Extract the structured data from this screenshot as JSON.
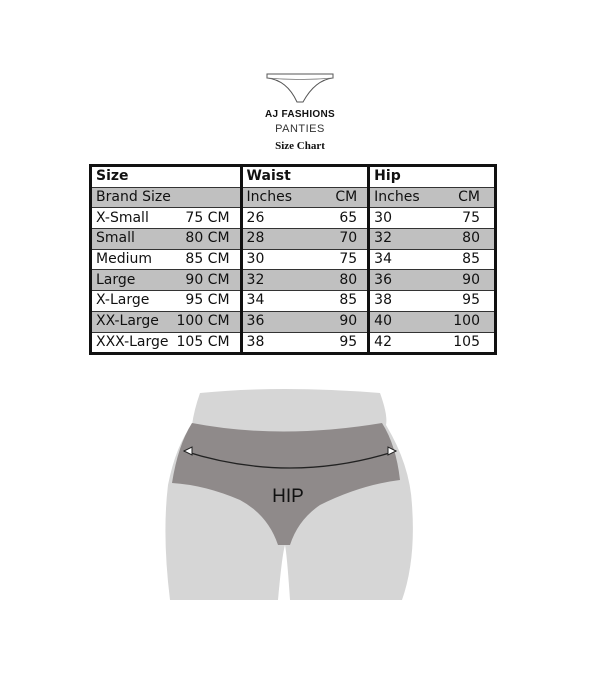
{
  "header": {
    "brand": "AJ FASHIONS",
    "product": "PANTIES",
    "title": "Size Chart"
  },
  "table": {
    "group_headers": [
      "Size",
      "Waist",
      "Hip"
    ],
    "sub_headers": [
      "Brand Size",
      "Inches",
      "CM",
      "Inches",
      "CM"
    ],
    "rows": [
      [
        "X-Small",
        "75 CM",
        "26",
        "65",
        "30",
        "75"
      ],
      [
        "Small",
        "80 CM",
        "28",
        "70",
        "32",
        "80"
      ],
      [
        "Medium",
        "85 CM",
        "30",
        "75",
        "34",
        "85"
      ],
      [
        "Large",
        "90 CM",
        "32",
        "80",
        "36",
        "90"
      ],
      [
        "X-Large",
        "95 CM",
        "34",
        "85",
        "38",
        "95"
      ],
      [
        "XX-Large",
        "100 CM",
        "36",
        "90",
        "40",
        "100"
      ],
      [
        "XXX-Large",
        "105 CM",
        "38",
        "95",
        "42",
        "105"
      ]
    ]
  },
  "illustration": {
    "label": "HIP",
    "icons": [
      "panties-outline-icon",
      "measure-arrow-icon"
    ],
    "colors": {
      "skin": "#d6d6d6",
      "garment": "#8f8a8a",
      "stripe": "#c0c0c0"
    }
  }
}
